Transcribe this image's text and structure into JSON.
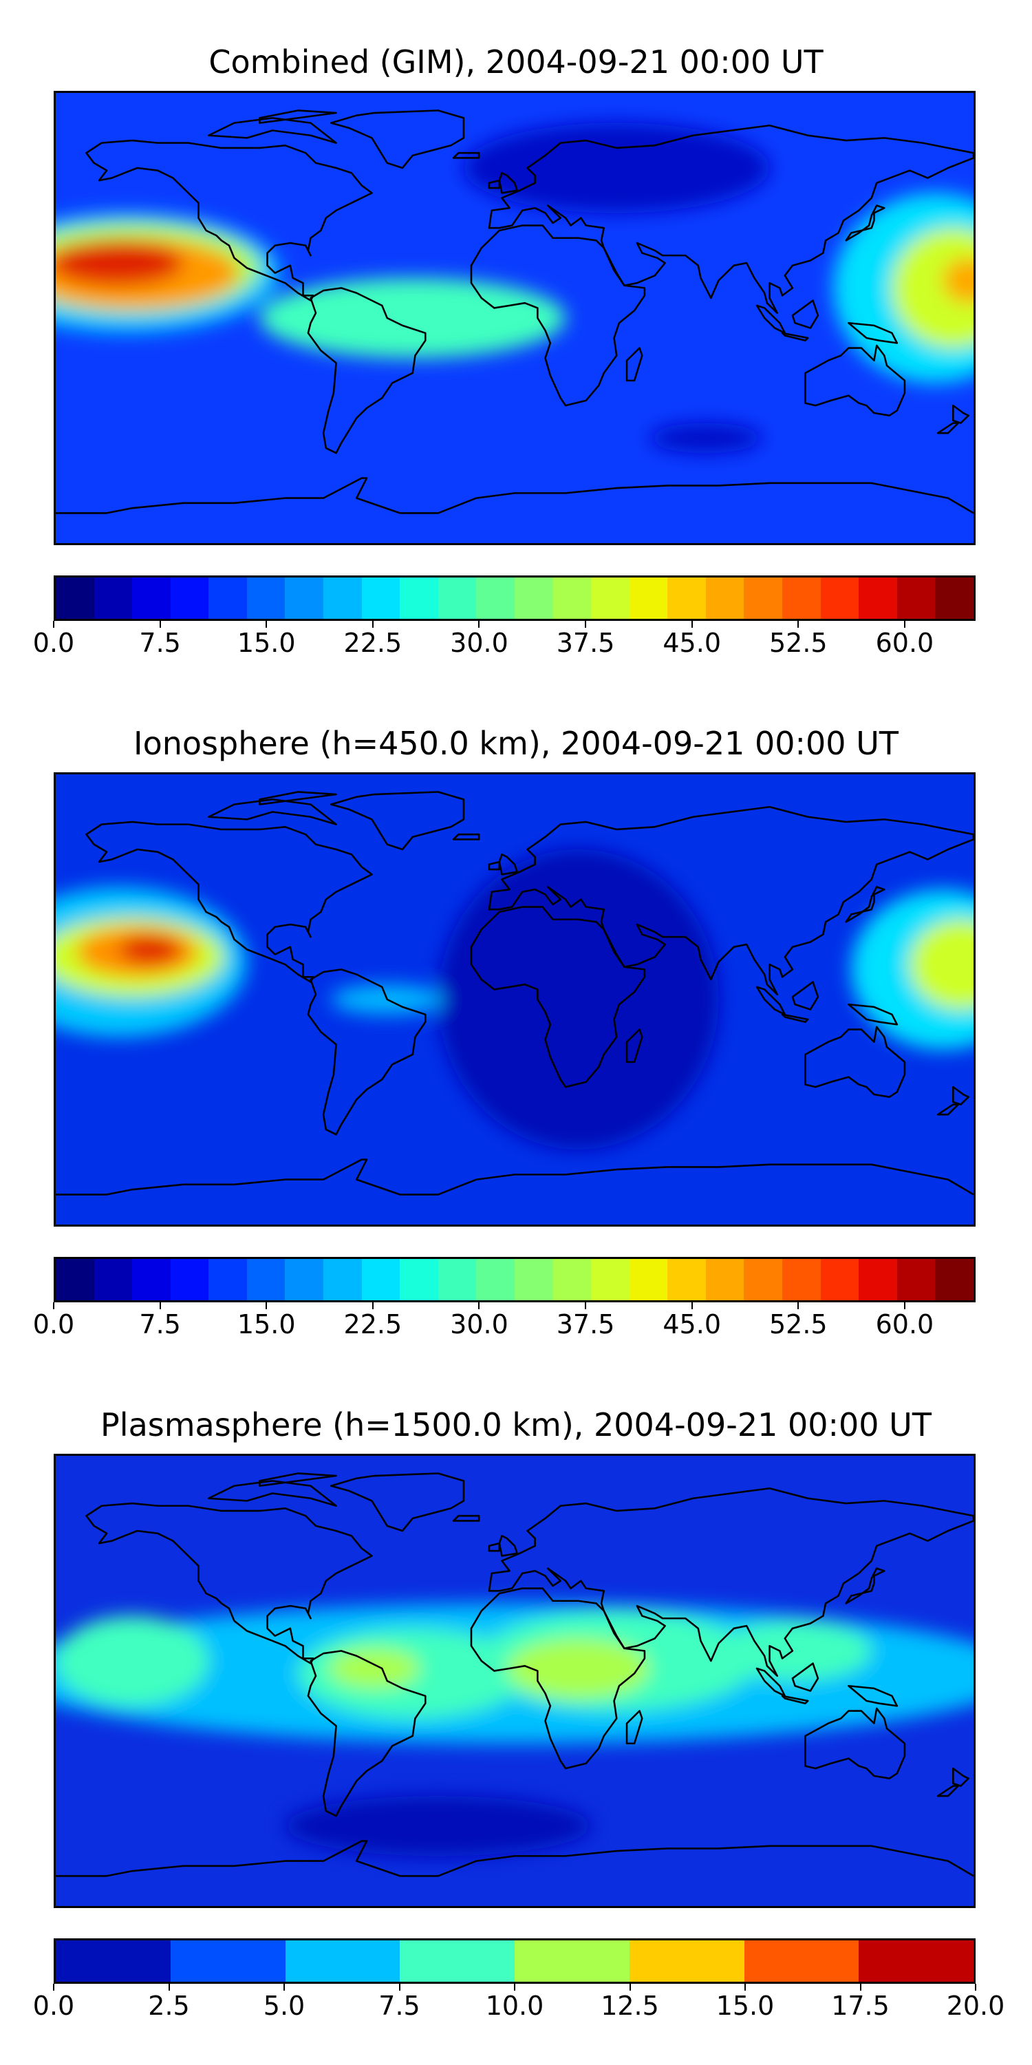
{
  "panels": [
    {
      "title": "Combined (GIM), 2004-09-21 00:00 UT",
      "colorbar": {
        "ticks": [
          "0.0",
          "7.5",
          "15.0",
          "22.5",
          "30.0",
          "37.5",
          "45.0",
          "52.5",
          "60.0"
        ],
        "range": [
          0,
          65
        ],
        "colors": [
          "#00007f",
          "#0000b2",
          "#0000e5",
          "#0010ff",
          "#003cff",
          "#0064ff",
          "#0090ff",
          "#00b8ff",
          "#00e0ff",
          "#18ffdc",
          "#3cffba",
          "#60ff96",
          "#86ff70",
          "#aaff4c",
          "#ceff28",
          "#f0f400",
          "#ffcc00",
          "#ffa800",
          "#ff8000",
          "#ff5800",
          "#ff3000",
          "#e50800",
          "#b20000",
          "#7f0000"
        ]
      },
      "map": {
        "background": "#0a3cff",
        "blobs": [
          {
            "lon": -152,
            "lat": 18,
            "rx": 60,
            "ry": 24,
            "color": "#00c8ff"
          },
          {
            "lon": -150,
            "lat": 20,
            "rx": 50,
            "ry": 18,
            "color": "#aaff4c"
          },
          {
            "lon": -150,
            "lat": 18,
            "rx": 42,
            "ry": 14,
            "color": "#ff9a00"
          },
          {
            "lon": -156,
            "lat": 22,
            "rx": 26,
            "ry": 9,
            "color": "#e02000"
          },
          {
            "lon": -40,
            "lat": 0,
            "rx": 60,
            "ry": 16,
            "color": "#40ffc0"
          },
          {
            "lon": 165,
            "lat": 12,
            "rx": 40,
            "ry": 38,
            "color": "#00e0ff"
          },
          {
            "lon": 172,
            "lat": 12,
            "rx": 24,
            "ry": 24,
            "color": "#ceff28"
          },
          {
            "lon": 178,
            "lat": 15,
            "rx": 10,
            "ry": 9,
            "color": "#ffa800"
          },
          {
            "lon": 40,
            "lat": 60,
            "rx": 60,
            "ry": 18,
            "color": "#0010c8"
          },
          {
            "lon": 75,
            "lat": -48,
            "rx": 22,
            "ry": 6,
            "color": "#0010c8"
          }
        ]
      }
    },
    {
      "title": "Ionosphere  (h=450.0 km), 2004-09-21 00:00 UT",
      "colorbar": {
        "ticks": [
          "0.0",
          "7.5",
          "15.0",
          "22.5",
          "30.0",
          "37.5",
          "45.0",
          "52.5",
          "60.0"
        ],
        "range": [
          0,
          65
        ],
        "colors": [
          "#00007f",
          "#0000b2",
          "#0000e5",
          "#0010ff",
          "#003cff",
          "#0064ff",
          "#0090ff",
          "#00b8ff",
          "#00e0ff",
          "#18ffdc",
          "#3cffba",
          "#60ff96",
          "#86ff70",
          "#aaff4c",
          "#ceff28",
          "#f0f400",
          "#ffcc00",
          "#ffa800",
          "#ff8000",
          "#ff5800",
          "#ff3000",
          "#e50800",
          "#b20000",
          "#7f0000"
        ]
      },
      "map": {
        "background": "#0030e8",
        "blobs": [
          {
            "lon": 25,
            "lat": 0,
            "rx": 55,
            "ry": 60,
            "color": "#0010b8"
          },
          {
            "lon": -155,
            "lat": 15,
            "rx": 50,
            "ry": 30,
            "color": "#00c8ff"
          },
          {
            "lon": -150,
            "lat": 17,
            "rx": 36,
            "ry": 16,
            "color": "#ceff28"
          },
          {
            "lon": -148,
            "lat": 19,
            "rx": 24,
            "ry": 10,
            "color": "#ff9000"
          },
          {
            "lon": -143,
            "lat": 20,
            "rx": 12,
            "ry": 6,
            "color": "#e02000"
          },
          {
            "lon": 168,
            "lat": 12,
            "rx": 36,
            "ry": 32,
            "color": "#00e0ff"
          },
          {
            "lon": 175,
            "lat": 14,
            "rx": 20,
            "ry": 18,
            "color": "#ceff28"
          },
          {
            "lon": -50,
            "lat": 0,
            "rx": 22,
            "ry": 6,
            "color": "#00b8ff"
          }
        ]
      }
    },
    {
      "title": "Plasmasphere (h=1500.0 km), 2004-09-21 00:00 UT",
      "colorbar": {
        "ticks": [
          "0.0",
          "2.5",
          "5.0",
          "7.5",
          "10.0",
          "12.5",
          "15.0",
          "17.5",
          "20.0"
        ],
        "range": [
          0,
          20
        ],
        "colors": [
          "#0010b8",
          "#0050ff",
          "#00c0ff",
          "#40ffc0",
          "#aaff4c",
          "#ffcc00",
          "#ff5800",
          "#c00000"
        ]
      },
      "map": {
        "background": "#0a2ee0",
        "blobs": [
          {
            "lon": 0,
            "lat": 3,
            "rx": 200,
            "ry": 28,
            "color": "#00c0ff"
          },
          {
            "lon": -150,
            "lat": 8,
            "rx": 30,
            "ry": 18,
            "color": "#40ffc0"
          },
          {
            "lon": -40,
            "lat": 3,
            "rx": 45,
            "ry": 18,
            "color": "#40ffc0"
          },
          {
            "lon": 40,
            "lat": 8,
            "rx": 55,
            "ry": 20,
            "color": "#40ffc0"
          },
          {
            "lon": 110,
            "lat": 12,
            "rx": 30,
            "ry": 12,
            "color": "#40ffc0"
          },
          {
            "lon": -55,
            "lat": 5,
            "rx": 18,
            "ry": 8,
            "color": "#aaff4c"
          },
          {
            "lon": 25,
            "lat": 5,
            "rx": 28,
            "ry": 12,
            "color": "#aaff4c"
          },
          {
            "lon": -30,
            "lat": -58,
            "rx": 60,
            "ry": 12,
            "color": "#0010b8"
          }
        ]
      }
    }
  ]
}
